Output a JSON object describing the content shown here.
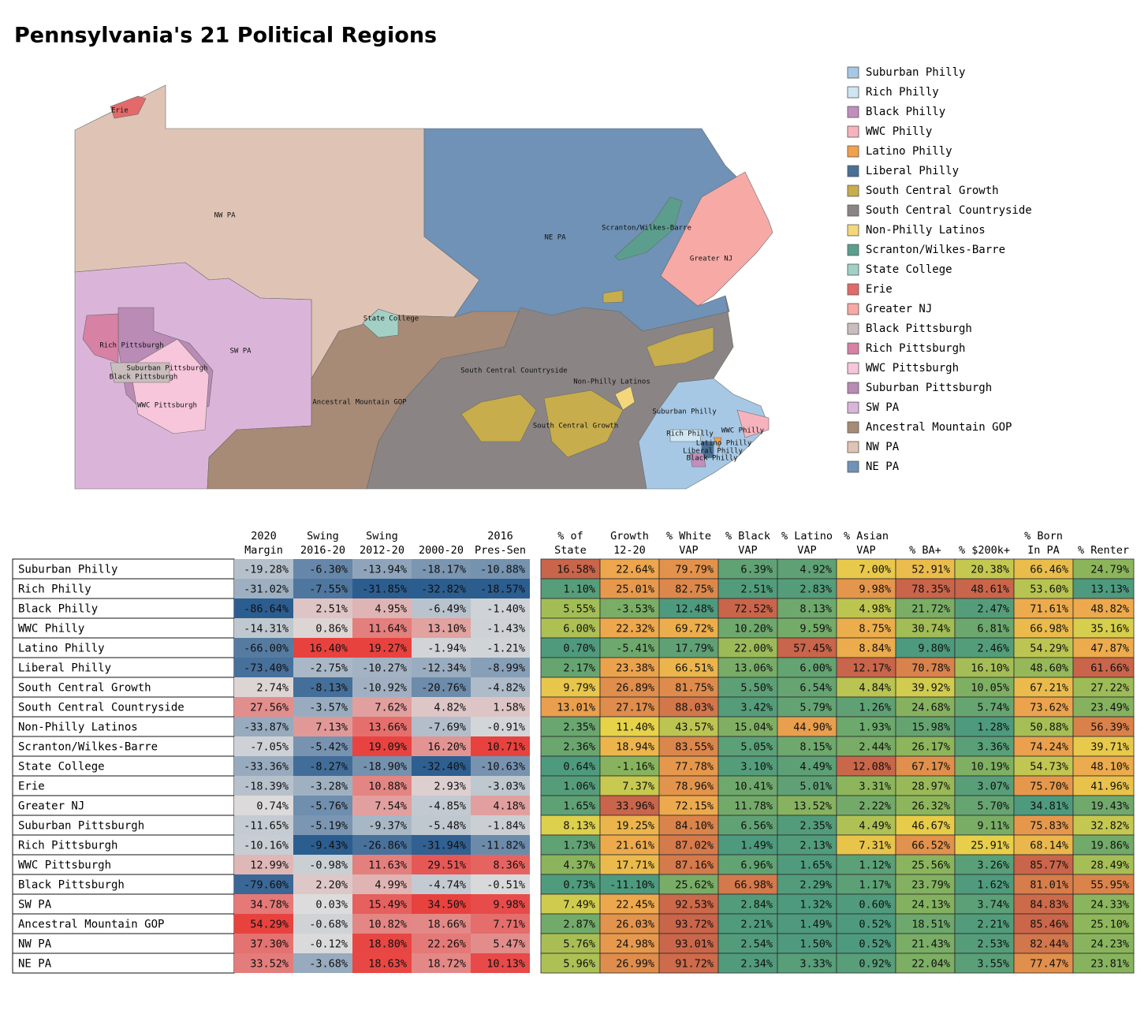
{
  "title": "Pennsylvania's 21 Political Regions",
  "legend": [
    {
      "name": "Suburban Philly",
      "color": "#a6c8e4"
    },
    {
      "name": "Rich Philly",
      "color": "#cfe6f2"
    },
    {
      "name": "Black Philly",
      "color": "#c08fbd"
    },
    {
      "name": "WWC Philly",
      "color": "#f7b3bd"
    },
    {
      "name": "Latino Philly",
      "color": "#f3a04e"
    },
    {
      "name": "Liberal Philly",
      "color": "#4a6f94"
    },
    {
      "name": "South Central Growth",
      "color": "#c7ad4c"
    },
    {
      "name": "South Central Countryside",
      "color": "#8a8584"
    },
    {
      "name": "Non-Philly Latinos",
      "color": "#f4d77a"
    },
    {
      "name": "Scranton/Wilkes-Barre",
      "color": "#5b9e8d"
    },
    {
      "name": "State College",
      "color": "#a2d0c4"
    },
    {
      "name": "Erie",
      "color": "#e26a6a"
    },
    {
      "name": "Greater NJ",
      "color": "#f7a9a6"
    },
    {
      "name": "Black Pittsburgh",
      "color": "#c9bebd"
    },
    {
      "name": "Rich Pittsburgh",
      "color": "#d781a4"
    },
    {
      "name": "WWC Pittsburgh",
      "color": "#f7c6da"
    },
    {
      "name": "Suburban Pittsburgh",
      "color": "#b98bb5"
    },
    {
      "name": "SW PA",
      "color": "#dbb5d9"
    },
    {
      "name": "Ancestral Mountain GOP",
      "color": "#a78b77"
    },
    {
      "name": "NW PA",
      "color": "#dfc4b5"
    },
    {
      "name": "NE PA",
      "color": "#6f92b6"
    }
  ],
  "map": {
    "labels": [
      "Erie",
      "NW PA",
      "NE PA",
      "Scranton/Wilkes-Barre",
      "Greater NJ",
      "State College",
      "Rich Pittsburgh",
      "SW PA",
      "Suburban Pittsburgh",
      "Black Pittsburgh",
      "WWC Pittsburgh",
      "Ancestral Mountain GOP",
      "South Central Countryside",
      "Non-Philly Latinos",
      "Suburban Philly",
      "South Central Growth",
      "Rich Philly",
      "WWC Philly",
      "Latino Philly",
      "Liberal Philly",
      "Black Philly"
    ]
  },
  "table": {
    "diverging_colors": [
      "#2c5d8f",
      "#dcdcdc",
      "#e8423f"
    ],
    "sequential_colors": [
      "#4e9a7e",
      "#8fb65a",
      "#e6d34a",
      "#eda64d",
      "#c9654a"
    ],
    "column_groups": [
      {
        "scale": "diverging",
        "headers": [
          [
            "2020",
            "Margin"
          ],
          [
            "Swing",
            "2016-20"
          ],
          [
            "Swing",
            "2012-20"
          ],
          [
            "2000-20"
          ],
          [
            "2016",
            "Pres-Sen"
          ]
        ]
      },
      {
        "scale": "sequential",
        "headers": [
          [
            "% of",
            "State"
          ],
          [
            "Growth",
            "12-20"
          ],
          [
            "% White",
            "VAP"
          ],
          [
            "% Black",
            "VAP"
          ],
          [
            "% Latino",
            "VAP"
          ],
          [
            "% Asian",
            "VAP"
          ],
          [
            "% BA+"
          ],
          [
            "% $200k+"
          ],
          [
            "% Born",
            "In PA"
          ],
          [
            "% Renter"
          ]
        ]
      }
    ],
    "rows": [
      {
        "name": "Suburban Philly",
        "values": [
          "-19.28%",
          "-6.30%",
          "-13.94%",
          "-18.17%",
          "-10.88%",
          "16.58%",
          "22.64%",
          "79.79%",
          "6.39%",
          "4.92%",
          "7.00%",
          "52.91%",
          "20.38%",
          "66.46%",
          "24.79%"
        ]
      },
      {
        "name": "Rich Philly",
        "values": [
          "-31.02%",
          "-7.55%",
          "-31.85%",
          "-32.82%",
          "-18.57%",
          "1.10%",
          "25.01%",
          "82.75%",
          "2.51%",
          "2.83%",
          "9.98%",
          "78.35%",
          "48.61%",
          "53.60%",
          "13.13%"
        ]
      },
      {
        "name": "Black Philly",
        "values": [
          "-86.64%",
          "2.51%",
          "4.95%",
          "-6.49%",
          "-1.40%",
          "5.55%",
          "-3.53%",
          "12.48%",
          "72.52%",
          "8.13%",
          "4.98%",
          "21.72%",
          "2.47%",
          "71.61%",
          "48.82%"
        ]
      },
      {
        "name": "WWC Philly",
        "values": [
          "-14.31%",
          "0.86%",
          "11.64%",
          "13.10%",
          "-1.43%",
          "6.00%",
          "22.32%",
          "69.72%",
          "10.20%",
          "9.59%",
          "8.75%",
          "30.74%",
          "6.81%",
          "66.98%",
          "35.16%"
        ]
      },
      {
        "name": "Latino Philly",
        "values": [
          "-66.00%",
          "16.40%",
          "19.27%",
          "-1.94%",
          "-1.21%",
          "0.70%",
          "-5.41%",
          "17.79%",
          "22.00%",
          "57.45%",
          "8.84%",
          "9.80%",
          "2.46%",
          "54.29%",
          "47.87%"
        ]
      },
      {
        "name": "Liberal Philly",
        "values": [
          "-73.40%",
          "-2.75%",
          "-10.27%",
          "-12.34%",
          "-8.99%",
          "2.17%",
          "23.38%",
          "66.51%",
          "13.06%",
          "6.00%",
          "12.17%",
          "70.78%",
          "16.10%",
          "48.60%",
          "61.66%"
        ]
      },
      {
        "name": "South Central Growth",
        "values": [
          "2.74%",
          "-8.13%",
          "-10.92%",
          "-20.76%",
          "-4.82%",
          "9.79%",
          "26.89%",
          "81.75%",
          "5.50%",
          "6.54%",
          "4.84%",
          "39.92%",
          "10.05%",
          "67.21%",
          "27.22%"
        ]
      },
      {
        "name": "South Central Countryside",
        "values": [
          "27.56%",
          "-3.57%",
          "7.62%",
          "4.82%",
          "1.58%",
          "13.01%",
          "27.17%",
          "88.03%",
          "3.42%",
          "5.79%",
          "1.26%",
          "24.68%",
          "5.74%",
          "73.62%",
          "23.49%"
        ]
      },
      {
        "name": "Non-Philly Latinos",
        "values": [
          "-33.87%",
          "7.13%",
          "13.66%",
          "-7.69%",
          "-0.91%",
          "2.35%",
          "11.40%",
          "43.57%",
          "15.04%",
          "44.90%",
          "1.93%",
          "15.98%",
          "1.28%",
          "50.88%",
          "56.39%"
        ]
      },
      {
        "name": "Scranton/Wilkes-Barre",
        "values": [
          "-7.05%",
          "-5.42%",
          "19.09%",
          "16.20%",
          "10.71%",
          "2.36%",
          "18.94%",
          "83.55%",
          "5.05%",
          "8.15%",
          "2.44%",
          "26.17%",
          "3.36%",
          "74.24%",
          "39.71%"
        ]
      },
      {
        "name": "State College",
        "values": [
          "-33.36%",
          "-8.27%",
          "-18.90%",
          "-32.40%",
          "-10.63%",
          "0.64%",
          "-1.16%",
          "77.78%",
          "3.10%",
          "4.49%",
          "12.08%",
          "67.17%",
          "10.19%",
          "54.73%",
          "48.10%"
        ]
      },
      {
        "name": "Erie",
        "values": [
          "-18.39%",
          "-3.28%",
          "10.88%",
          "2.93%",
          "-3.03%",
          "1.06%",
          "7.37%",
          "78.96%",
          "10.41%",
          "5.01%",
          "3.31%",
          "28.97%",
          "3.07%",
          "75.70%",
          "41.96%"
        ]
      },
      {
        "name": "Greater NJ",
        "values": [
          "0.74%",
          "-5.76%",
          "7.54%",
          "-4.85%",
          "4.18%",
          "1.65%",
          "33.96%",
          "72.15%",
          "11.78%",
          "13.52%",
          "2.22%",
          "26.32%",
          "5.70%",
          "34.81%",
          "19.43%"
        ]
      },
      {
        "name": "Suburban Pittsburgh",
        "values": [
          "-11.65%",
          "-5.19%",
          "-9.37%",
          "-5.48%",
          "-1.84%",
          "8.13%",
          "19.25%",
          "84.10%",
          "6.56%",
          "2.35%",
          "4.49%",
          "46.67%",
          "9.11%",
          "75.83%",
          "32.82%"
        ]
      },
      {
        "name": "Rich Pittsburgh",
        "values": [
          "-10.16%",
          "-9.43%",
          "-26.86%",
          "-31.94%",
          "-11.82%",
          "1.73%",
          "21.61%",
          "87.02%",
          "1.49%",
          "2.13%",
          "7.31%",
          "66.52%",
          "25.91%",
          "68.14%",
          "19.86%"
        ]
      },
      {
        "name": "WWC Pittsburgh",
        "values": [
          "12.99%",
          "-0.98%",
          "11.63%",
          "29.51%",
          "8.36%",
          "4.37%",
          "17.71%",
          "87.16%",
          "6.96%",
          "1.65%",
          "1.12%",
          "25.56%",
          "3.26%",
          "85.77%",
          "28.49%"
        ]
      },
      {
        "name": "Black Pittsburgh",
        "values": [
          "-79.60%",
          "2.20%",
          "4.99%",
          "-4.74%",
          "-0.51%",
          "0.73%",
          "-11.10%",
          "25.62%",
          "66.98%",
          "2.29%",
          "1.17%",
          "23.79%",
          "1.62%",
          "81.01%",
          "55.95%"
        ]
      },
      {
        "name": "SW PA",
        "values": [
          "34.78%",
          "0.03%",
          "15.49%",
          "34.50%",
          "9.98%",
          "7.49%",
          "22.45%",
          "92.53%",
          "2.84%",
          "1.32%",
          "0.60%",
          "24.13%",
          "3.74%",
          "84.83%",
          "24.33%"
        ]
      },
      {
        "name": "Ancestral Mountain GOP",
        "values": [
          "54.29%",
          "-0.68%",
          "10.82%",
          "18.66%",
          "7.71%",
          "2.87%",
          "26.03%",
          "93.72%",
          "2.21%",
          "1.49%",
          "0.52%",
          "18.51%",
          "2.21%",
          "85.46%",
          "25.10%"
        ]
      },
      {
        "name": "NW PA",
        "values": [
          "37.30%",
          "-0.12%",
          "18.80%",
          "22.26%",
          "5.47%",
          "5.76%",
          "24.98%",
          "93.01%",
          "2.54%",
          "1.50%",
          "0.52%",
          "21.43%",
          "2.53%",
          "82.44%",
          "24.23%"
        ]
      },
      {
        "name": "NE PA",
        "values": [
          "33.52%",
          "-3.68%",
          "18.63%",
          "18.72%",
          "10.13%",
          "5.96%",
          "26.99%",
          "91.72%",
          "2.34%",
          "3.33%",
          "0.92%",
          "22.04%",
          "3.55%",
          "77.47%",
          "23.81%"
        ]
      }
    ]
  }
}
